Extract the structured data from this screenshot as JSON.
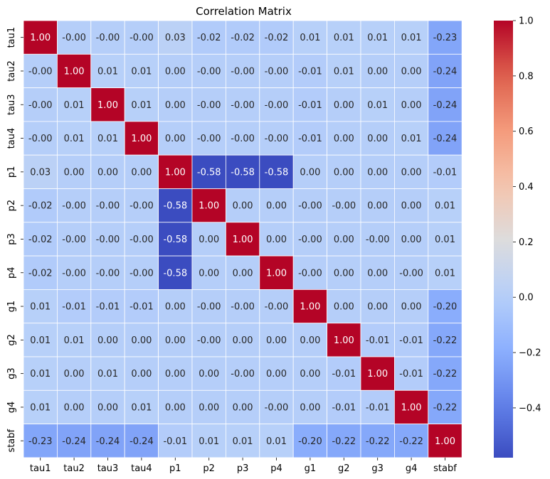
{
  "chart_data": {
    "type": "heatmap",
    "title": "Correlation Matrix",
    "xlabel": "",
    "ylabel": "",
    "labels": [
      "tau1",
      "tau2",
      "tau3",
      "tau4",
      "p1",
      "p2",
      "p3",
      "p4",
      "g1",
      "g2",
      "g3",
      "g4",
      "stabf"
    ],
    "matrix": [
      [
        "1.00",
        "-0.00",
        "-0.00",
        "-0.00",
        "0.03",
        "-0.02",
        "-0.02",
        "-0.02",
        "0.01",
        "0.01",
        "0.01",
        "0.01",
        "-0.23"
      ],
      [
        "-0.00",
        "1.00",
        "0.01",
        "0.01",
        "0.00",
        "-0.00",
        "-0.00",
        "-0.00",
        "-0.01",
        "0.01",
        "0.00",
        "0.00",
        "-0.24"
      ],
      [
        "-0.00",
        "0.01",
        "1.00",
        "0.01",
        "0.00",
        "-0.00",
        "-0.00",
        "-0.00",
        "-0.01",
        "0.00",
        "0.01",
        "0.00",
        "-0.24"
      ],
      [
        "-0.00",
        "0.01",
        "0.01",
        "1.00",
        "0.00",
        "-0.00",
        "-0.00",
        "-0.00",
        "-0.01",
        "0.00",
        "0.00",
        "0.01",
        "-0.24"
      ],
      [
        "0.03",
        "0.00",
        "0.00",
        "0.00",
        "1.00",
        "-0.58",
        "-0.58",
        "-0.58",
        "0.00",
        "0.00",
        "0.00",
        "0.00",
        "-0.01"
      ],
      [
        "-0.02",
        "-0.00",
        "-0.00",
        "-0.00",
        "-0.58",
        "1.00",
        "0.00",
        "0.00",
        "-0.00",
        "-0.00",
        "0.00",
        "0.00",
        "0.01"
      ],
      [
        "-0.02",
        "-0.00",
        "-0.00",
        "-0.00",
        "-0.58",
        "0.00",
        "1.00",
        "0.00",
        "-0.00",
        "0.00",
        "-0.00",
        "0.00",
        "0.01"
      ],
      [
        "-0.02",
        "-0.00",
        "-0.00",
        "-0.00",
        "-0.58",
        "0.00",
        "0.00",
        "1.00",
        "-0.00",
        "0.00",
        "0.00",
        "-0.00",
        "0.01"
      ],
      [
        "0.01",
        "-0.01",
        "-0.01",
        "-0.01",
        "0.00",
        "-0.00",
        "-0.00",
        "-0.00",
        "1.00",
        "0.00",
        "0.00",
        "0.00",
        "-0.20"
      ],
      [
        "0.01",
        "0.01",
        "0.00",
        "0.00",
        "0.00",
        "-0.00",
        "0.00",
        "0.00",
        "0.00",
        "1.00",
        "-0.01",
        "-0.01",
        "-0.22"
      ],
      [
        "0.01",
        "0.00",
        "0.01",
        "0.00",
        "0.00",
        "0.00",
        "-0.00",
        "0.00",
        "0.00",
        "-0.01",
        "1.00",
        "-0.01",
        "-0.22"
      ],
      [
        "0.01",
        "0.00",
        "0.00",
        "0.01",
        "0.00",
        "0.00",
        "0.00",
        "-0.00",
        "0.00",
        "-0.01",
        "-0.01",
        "1.00",
        "-0.22"
      ],
      [
        "-0.23",
        "-0.24",
        "-0.24",
        "-0.24",
        "-0.01",
        "0.01",
        "0.01",
        "0.01",
        "-0.20",
        "-0.22",
        "-0.22",
        "-0.22",
        "1.00"
      ]
    ],
    "colormap": "coolwarm",
    "vmin": -0.58,
    "vmax": 1.0,
    "colorbar_ticks": [
      "1.0",
      "0.8",
      "0.6",
      "0.4",
      "0.2",
      "0.0",
      "−0.2",
      "−0.4"
    ],
    "colorbar_tick_values": [
      1.0,
      0.8,
      0.6,
      0.4,
      0.2,
      0.0,
      -0.2,
      -0.4
    ],
    "grid": true,
    "colors": {
      "low": "#3b4cc0",
      "mid": "#dddcdc",
      "high": "#b40426"
    }
  }
}
